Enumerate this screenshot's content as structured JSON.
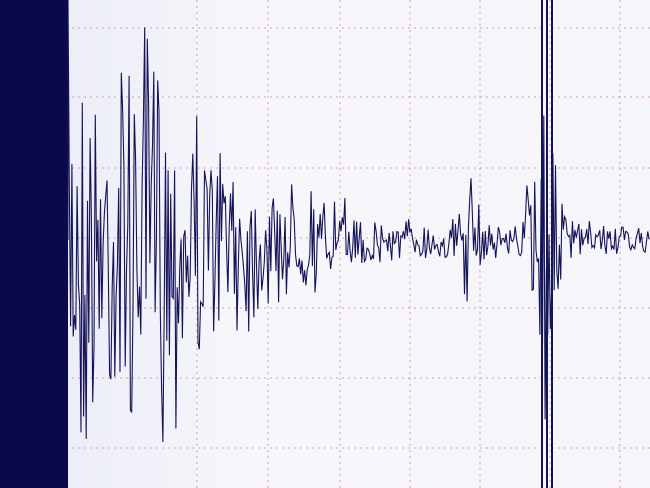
{
  "chart_data": {
    "type": "line",
    "title": "",
    "xlabel": "",
    "ylabel": "",
    "grid": true,
    "legend": "none",
    "colors": {
      "trace": "#14145a",
      "grid": "#d9a0a8",
      "background": "#f5f5fa"
    },
    "series": [
      {
        "envelope_x": [
          0,
          10,
          15,
          20,
          25,
          30,
          35,
          40,
          45,
          50,
          55,
          60,
          65,
          70,
          72,
          74,
          76,
          78,
          80,
          82,
          84,
          86,
          88,
          90,
          95,
          100
        ],
        "envelope_amplitude": [
          1.0,
          1.0,
          0.95,
          0.9,
          0.8,
          0.65,
          0.45,
          0.35,
          0.3,
          0.22,
          0.15,
          0.12,
          0.1,
          0.12,
          0.32,
          0.12,
          0.08,
          0.07,
          0.08,
          0.55,
          1.0,
          0.2,
          0.12,
          0.08,
          0.07,
          0.06
        ]
      }
    ]
  }
}
